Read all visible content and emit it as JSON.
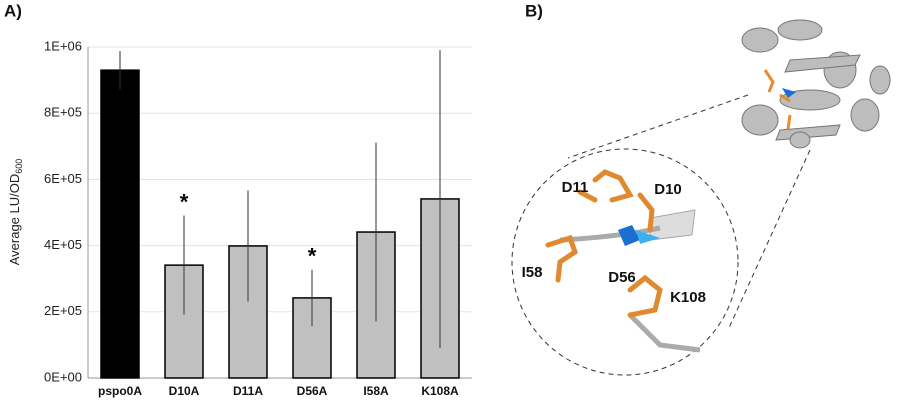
{
  "chart_data": {
    "type": "bar",
    "panel_label": "A)",
    "ylabel": "Average LU/OD",
    "ylabel_subscript": "600",
    "categories": [
      "pspo0A",
      "D10A",
      "D11A",
      "D56A",
      "I58A",
      "K108A"
    ],
    "values": [
      930000,
      341000,
      399000,
      242000,
      441000,
      541000
    ],
    "errors": [
      58000,
      150000,
      168000,
      85000,
      270000,
      450000
    ],
    "colors": [
      "#000000",
      "#c0c0c0",
      "#c0c0c0",
      "#c0c0c0",
      "#c0c0c0",
      "#c0c0c0"
    ],
    "annotations": [
      {
        "text": "*",
        "category": "D10A"
      },
      {
        "text": "*",
        "category": "D56A"
      }
    ],
    "ylim": [
      0,
      1000000
    ],
    "yticks": [
      {
        "value": 0,
        "label": "0E+00"
      },
      {
        "value": 200000,
        "label": "2E+05"
      },
      {
        "value": 400000,
        "label": "4E+05"
      },
      {
        "value": 600000,
        "label": "6E+05"
      },
      {
        "value": 800000,
        "label": "8E+05"
      },
      {
        "value": 1000000,
        "label": "1E+06"
      }
    ],
    "grid": true
  },
  "structure_panel": {
    "panel_label": "B)",
    "residue_labels": [
      "D11",
      "D10",
      "I58",
      "D56",
      "K108"
    ]
  }
}
